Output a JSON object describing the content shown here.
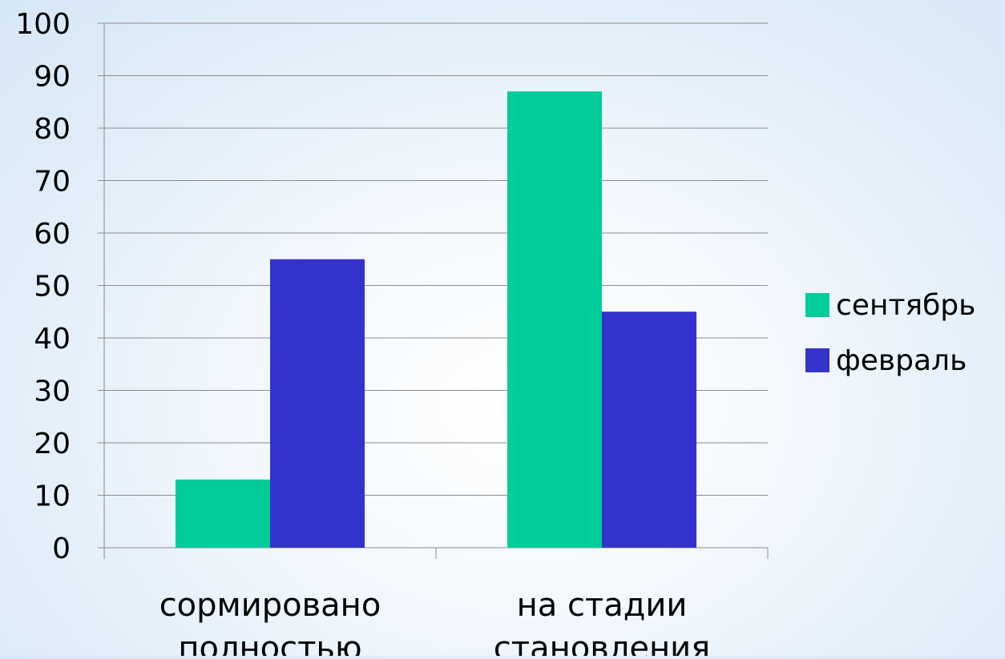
{
  "chart_data": {
    "type": "bar",
    "categories": [
      [
        "сормировано",
        "полностью"
      ],
      [
        "на стадии",
        "становления"
      ]
    ],
    "series": [
      {
        "name": "сентябрь",
        "values": [
          13,
          87
        ],
        "color": "#00CC99"
      },
      {
        "name": "февраль",
        "values": [
          55,
          45
        ],
        "color": "#3333CC"
      }
    ],
    "ylim": [
      0,
      100
    ],
    "yticks": [
      0,
      10,
      20,
      30,
      40,
      50,
      60,
      70,
      80,
      90,
      100
    ],
    "grid": true,
    "legend_position": "right"
  }
}
